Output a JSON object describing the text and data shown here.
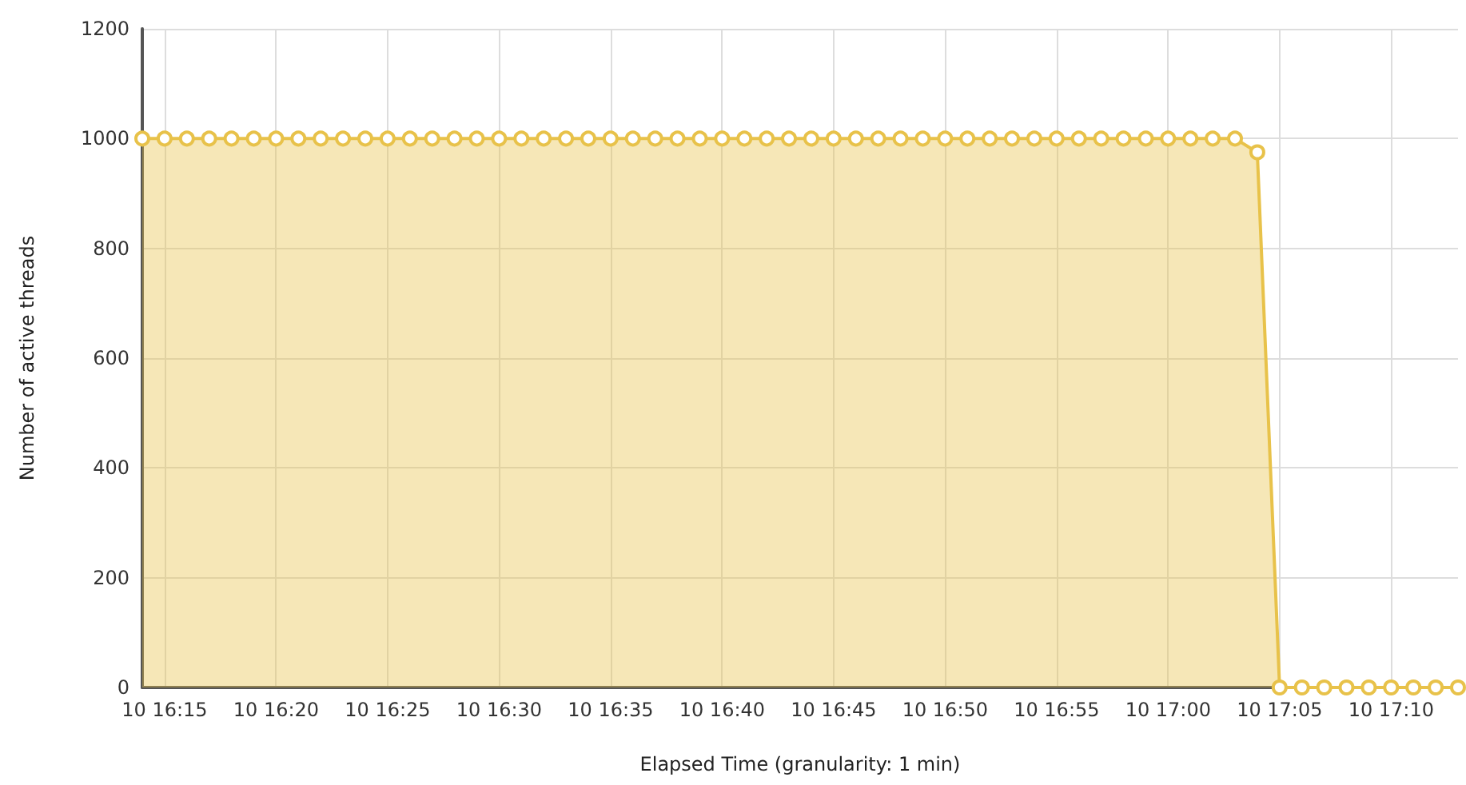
{
  "chart_data": {
    "type": "area",
    "xlabel": "Elapsed Time (granularity: 1 min)",
    "ylabel": "Number of active threads",
    "categories": [
      null,
      "10 16:15",
      null,
      null,
      null,
      null,
      "10 16:20",
      null,
      null,
      null,
      null,
      "10 16:25",
      null,
      null,
      null,
      null,
      "10 16:30",
      null,
      null,
      null,
      null,
      "10 16:35",
      null,
      null,
      null,
      null,
      "10 16:40",
      null,
      null,
      null,
      null,
      "10 16:45",
      null,
      null,
      null,
      null,
      "10 16:50",
      null,
      null,
      null,
      null,
      "10 16:55",
      null,
      null,
      null,
      null,
      "10 17:00",
      null,
      null,
      null,
      null,
      "10 17:05",
      null,
      null,
      null,
      null,
      "10 17:10",
      null,
      null,
      null
    ],
    "series": [
      {
        "color": "#e8c24a",
        "values": [
          1000,
          1000,
          1000,
          1000,
          1000,
          1000,
          1000,
          1000,
          1000,
          1000,
          1000,
          1000,
          1000,
          1000,
          1000,
          1000,
          1000,
          1000,
          1000,
          1000,
          1000,
          1000,
          1000,
          1000,
          1000,
          1000,
          1000,
          1000,
          1000,
          1000,
          1000,
          1000,
          1000,
          1000,
          1000,
          1000,
          1000,
          1000,
          1000,
          1000,
          1000,
          1000,
          1000,
          1000,
          1000,
          1000,
          1000,
          1000,
          1000,
          1000,
          975,
          0,
          0,
          0,
          0,
          0,
          0,
          0,
          0,
          0
        ]
      }
    ],
    "ylim": [
      0,
      1200
    ],
    "yticks": [
      0,
      200,
      400,
      600,
      800,
      1000,
      1200
    ],
    "grid": true,
    "marker": "circle",
    "line_style": "solid"
  }
}
